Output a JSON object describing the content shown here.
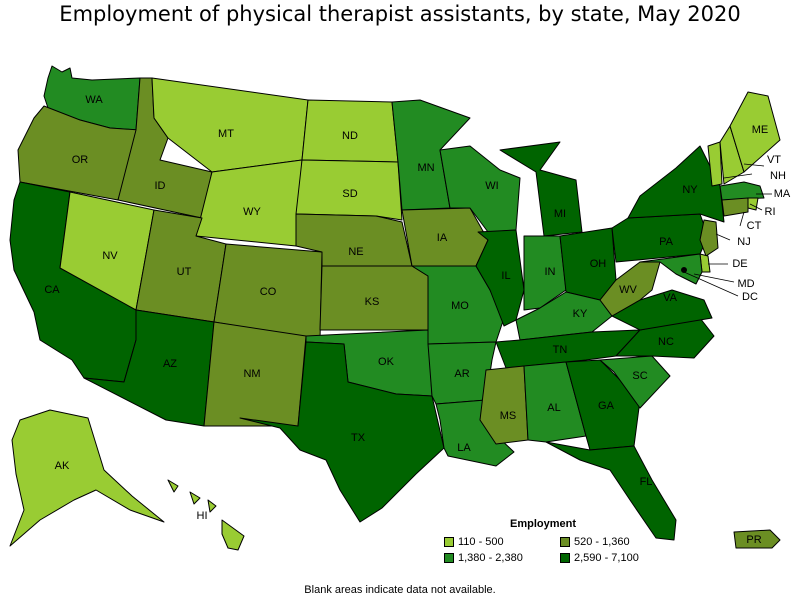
{
  "title": "Employment of physical therapist assistants, by state, May 2020",
  "legend": {
    "title": "Employment",
    "items": [
      {
        "label": "110 - 500",
        "color": "#99cc33"
      },
      {
        "label": "520 - 1,360",
        "color": "#6b8e23"
      },
      {
        "label": "1,380 - 2,380",
        "color": "#228b22"
      },
      {
        "label": "2,590 - 7,100",
        "color": "#006400"
      }
    ]
  },
  "footnote": "Blank areas indicate data not available.",
  "states": {
    "WA": {
      "label": "WA",
      "class": 2
    },
    "OR": {
      "label": "OR",
      "class": 1
    },
    "CA": {
      "label": "CA",
      "class": 3
    },
    "NV": {
      "label": "NV",
      "class": 0
    },
    "ID": {
      "label": "ID",
      "class": 1
    },
    "MT": {
      "label": "MT",
      "class": 0
    },
    "WY": {
      "label": "WY",
      "class": 0
    },
    "UT": {
      "label": "UT",
      "class": 1
    },
    "AZ": {
      "label": "AZ",
      "class": 3
    },
    "CO": {
      "label": "CO",
      "class": 1
    },
    "NM": {
      "label": "NM",
      "class": 1
    },
    "ND": {
      "label": "ND",
      "class": 0
    },
    "SD": {
      "label": "SD",
      "class": 0
    },
    "NE": {
      "label": "NE",
      "class": 1
    },
    "KS": {
      "label": "KS",
      "class": 1
    },
    "OK": {
      "label": "OK",
      "class": 2
    },
    "TX": {
      "label": "TX",
      "class": 3
    },
    "MN": {
      "label": "MN",
      "class": 2
    },
    "IA": {
      "label": "IA",
      "class": 1
    },
    "MO": {
      "label": "MO",
      "class": 2
    },
    "AR": {
      "label": "AR",
      "class": 2
    },
    "LA": {
      "label": "LA",
      "class": 2
    },
    "WI": {
      "label": "WI",
      "class": 2
    },
    "IL": {
      "label": "IL",
      "class": 3
    },
    "MI": {
      "label": "MI",
      "class": 3
    },
    "IN": {
      "label": "IN",
      "class": 2
    },
    "OH": {
      "label": "OH",
      "class": 3
    },
    "KY": {
      "label": "KY",
      "class": 2
    },
    "TN": {
      "label": "TN",
      "class": 3
    },
    "MS": {
      "label": "MS",
      "class": 1
    },
    "AL": {
      "label": "AL",
      "class": 2
    },
    "GA": {
      "label": "GA",
      "class": 3
    },
    "FL": {
      "label": "FL",
      "class": 3
    },
    "SC": {
      "label": "SC",
      "class": 2
    },
    "NC": {
      "label": "NC",
      "class": 3
    },
    "VA": {
      "label": "VA",
      "class": 3
    },
    "WV": {
      "label": "WV",
      "class": 1
    },
    "PA": {
      "label": "PA",
      "class": 3
    },
    "NY": {
      "label": "NY",
      "class": 3
    },
    "VT": {
      "label": "VT",
      "class": 0
    },
    "NH": {
      "label": "NH",
      "class": 0
    },
    "ME": {
      "label": "ME",
      "class": 0
    },
    "MA": {
      "label": "MA",
      "class": 2
    },
    "RI": {
      "label": "RI",
      "class": 0
    },
    "CT": {
      "label": "CT",
      "class": 1
    },
    "NJ": {
      "label": "NJ",
      "class": 1
    },
    "DE": {
      "label": "DE",
      "class": 0
    },
    "MD": {
      "label": "MD",
      "class": 2
    },
    "DC": {
      "label": "DC",
      "class": 0
    },
    "AK": {
      "label": "AK",
      "class": 0
    },
    "HI": {
      "label": "HI",
      "class": 0
    },
    "PR": {
      "label": "PR",
      "class": 1
    }
  }
}
